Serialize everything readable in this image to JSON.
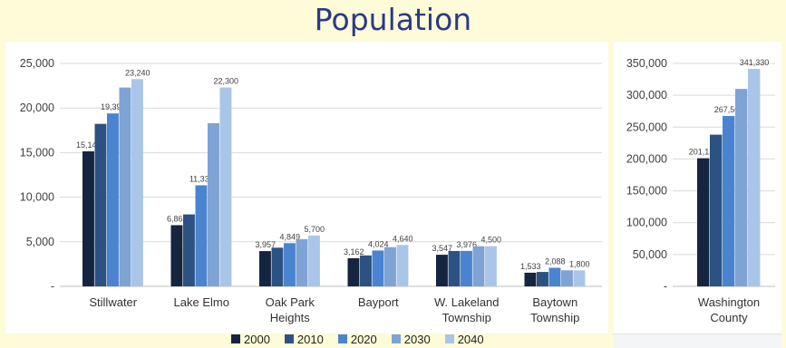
{
  "title": "Population",
  "series_names": [
    "2000",
    "2010",
    "2020",
    "2030",
    "2040"
  ],
  "colors": [
    "#15253f",
    "#2c5282",
    "#4a84d0",
    "#7ea3d4",
    "#a9c6e8"
  ],
  "chart_data": [
    {
      "type": "bar",
      "categories": [
        [
          "Stillwater"
        ],
        [
          "Lake Elmo"
        ],
        [
          "Oak Park",
          "Heights"
        ],
        [
          "Bayport"
        ],
        [
          "W. Lakeland",
          "Township"
        ],
        [
          "Baytown",
          "Township"
        ]
      ],
      "series": [
        {
          "name": "2000",
          "values": [
            15143,
            6863,
            3957,
            3162,
            3547,
            1533
          ]
        },
        {
          "name": "2010",
          "values": [
            18225,
            8069,
            4339,
            3471,
            3968,
            1618
          ]
        },
        {
          "name": "2020",
          "values": [
            19394,
            11335,
            4849,
            4024,
            3976,
            2088
          ]
        },
        {
          "name": "2030",
          "values": [
            22300,
            18300,
            5300,
            4400,
            4500,
            1800
          ]
        },
        {
          "name": "2040",
          "values": [
            23240,
            22300,
            5700,
            4640,
            4500,
            1800
          ]
        }
      ],
      "labels": [
        [
          "15,143",
          "",
          "19,394",
          "",
          "23,240"
        ],
        [
          "6,863",
          "",
          "11,335",
          "",
          "22,300"
        ],
        [
          "3,957",
          "",
          "4,849",
          "",
          "5,700"
        ],
        [
          "3,162",
          "",
          "4,024",
          "",
          "4,640"
        ],
        [
          "3,547",
          "",
          "3,976",
          "",
          "4,500"
        ],
        [
          "1,533",
          "",
          "2,088",
          "",
          "1,800"
        ]
      ],
      "ylim": [
        0,
        25000
      ],
      "yticks": [
        "-",
        "5,000",
        "10,000",
        "15,000",
        "20,000",
        "25,000"
      ],
      "grid": true
    },
    {
      "type": "bar",
      "categories": [
        [
          "Washington",
          "County"
        ]
      ],
      "series": [
        {
          "name": "2000",
          "values": [
            201130
          ]
        },
        {
          "name": "2010",
          "values": [
            238136
          ]
        },
        {
          "name": "2020",
          "values": [
            267568
          ]
        },
        {
          "name": "2030",
          "values": [
            310000
          ]
        },
        {
          "name": "2040",
          "values": [
            341330
          ]
        }
      ],
      "labels": [
        [
          "201,130",
          "",
          "267,568",
          "",
          "341,330"
        ]
      ],
      "ylim": [
        0,
        350000
      ],
      "yticks": [
        "-",
        "50,000",
        "100,000",
        "150,000",
        "200,000",
        "250,000",
        "300,000",
        "350,000"
      ],
      "grid": true
    }
  ]
}
